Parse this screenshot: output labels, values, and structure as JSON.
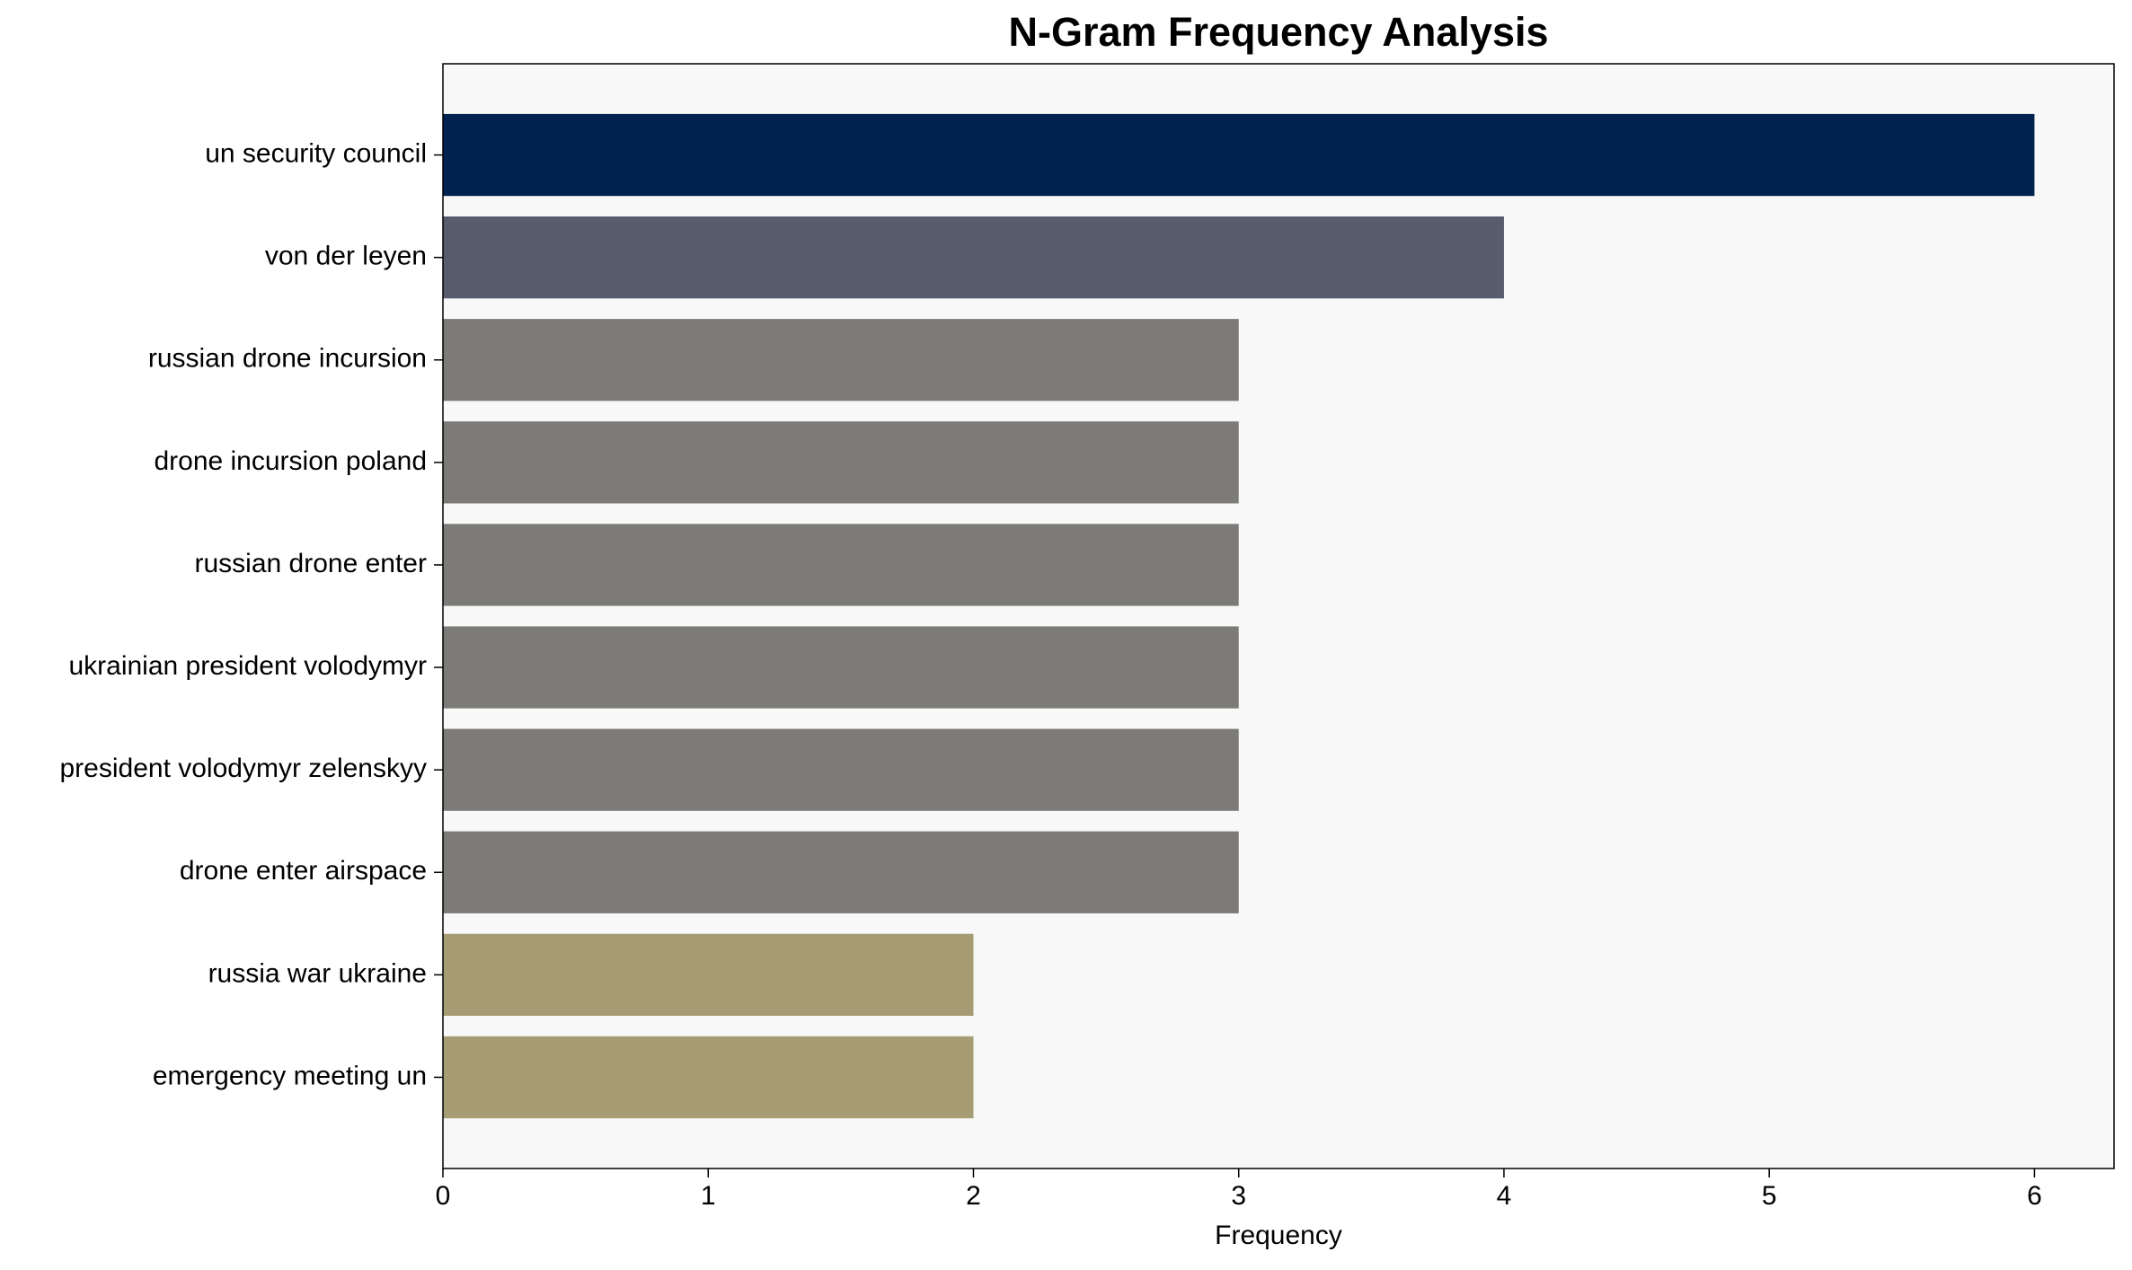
{
  "chart_data": {
    "type": "barh",
    "title": "N-Gram Frequency Analysis",
    "xlabel": "Frequency",
    "categories": [
      "un security council",
      "von der leyen",
      "russian drone incursion",
      "drone incursion poland",
      "russian drone enter",
      "ukrainian president volodymyr",
      "president volodymyr zelenskyy",
      "drone enter airspace",
      "russia war ukraine",
      "emergency meeting un"
    ],
    "values": [
      6,
      4,
      3,
      3,
      3,
      3,
      3,
      3,
      2,
      2
    ],
    "colors": [
      "#00224e",
      "#575d6d",
      "#7c7b78",
      "#7c7b78",
      "#7c7b78",
      "#7c7b78",
      "#7c7b78",
      "#7c7b78",
      "#a59c74",
      "#a59c74"
    ],
    "xlim": [
      0,
      6.3
    ],
    "xticks": [
      0,
      1,
      2,
      3,
      4,
      5,
      6
    ],
    "grid": false
  }
}
